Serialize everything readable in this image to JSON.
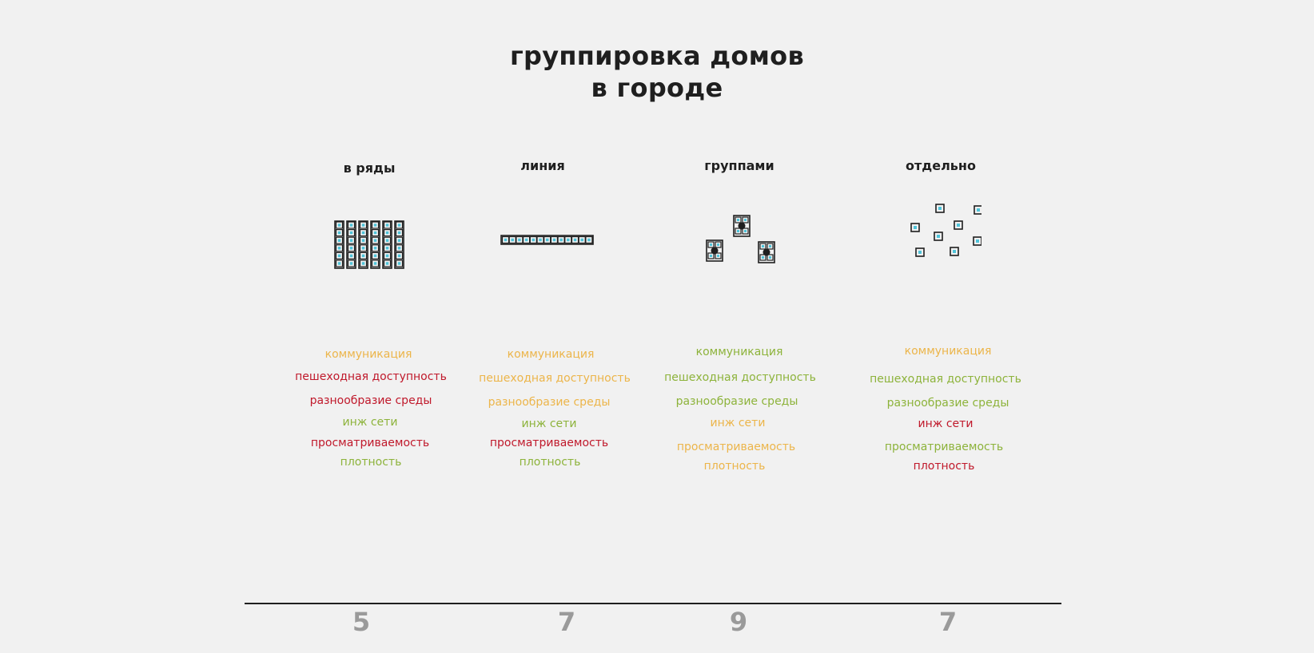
{
  "title": {
    "line1": "группировка домов",
    "line2": "в городе"
  },
  "colors": {
    "background": "#f1f1f1",
    "text": "#1f1f1f",
    "score": "#9a9a9a",
    "good": "#8db33b",
    "medium": "#ecb54a",
    "bad": "#c0192b",
    "cell_fill": "#4fc3d9"
  },
  "columns": [
    {
      "heading": "в ряды",
      "icon": "rows-grid-icon",
      "criteria": [
        {
          "label": "коммуникация",
          "rating": "medium"
        },
        {
          "label": "пешеходная доступность",
          "rating": "bad"
        },
        {
          "label": "разнообразие среды",
          "rating": "bad"
        },
        {
          "label": "инж сети",
          "rating": "good"
        },
        {
          "label": "просматриваемость",
          "rating": "bad"
        },
        {
          "label": "плотность",
          "rating": "good"
        }
      ],
      "score": "5"
    },
    {
      "heading": "линия",
      "icon": "line-row-icon",
      "criteria": [
        {
          "label": "коммуникация",
          "rating": "medium"
        },
        {
          "label": "пешеходная доступность",
          "rating": "medium"
        },
        {
          "label": "разнообразие среды",
          "rating": "medium"
        },
        {
          "label": "инж сети",
          "rating": "good"
        },
        {
          "label": "просматриваемость",
          "rating": "bad"
        },
        {
          "label": "плотность",
          "rating": "good"
        }
      ],
      "score": "7"
    },
    {
      "heading": "группами",
      "icon": "groups-cluster-icon",
      "criteria": [
        {
          "label": "коммуникация",
          "rating": "good"
        },
        {
          "label": "пешеходная доступность",
          "rating": "good"
        },
        {
          "label": "разнообразие среды",
          "rating": "good"
        },
        {
          "label": "инж сети",
          "rating": "medium"
        },
        {
          "label": "просматриваемость",
          "rating": "medium"
        },
        {
          "label": "плотность",
          "rating": "medium"
        }
      ],
      "score": "9"
    },
    {
      "heading": "отдельно",
      "icon": "scattered-houses-icon",
      "criteria": [
        {
          "label": "коммуникация",
          "rating": "medium"
        },
        {
          "label": "пешеходная доступность",
          "rating": "good"
        },
        {
          "label": "разнообразие среды",
          "rating": "good"
        },
        {
          "label": "инж сети",
          "rating": "bad"
        },
        {
          "label": "просматриваемость",
          "rating": "good"
        },
        {
          "label": "плотность",
          "rating": "bad"
        }
      ],
      "score": "7"
    }
  ]
}
